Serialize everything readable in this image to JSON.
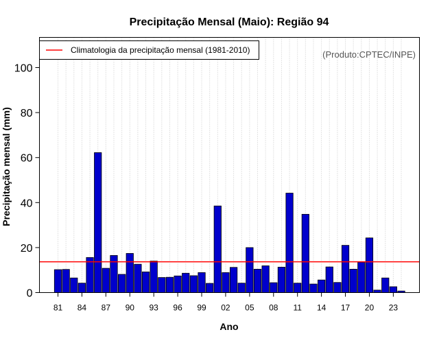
{
  "chart_data": {
    "type": "bar",
    "title": "Precipitação Mensal (Maio): Região 94",
    "xlabel": "Ano",
    "ylabel": "Precipitação mensal (mm)",
    "credit": "(Produto:CPTEC/INPE)",
    "legend": {
      "placement": "top-left",
      "entries": [
        {
          "label": "Climatologia da precipitação mensal (1981-2010)",
          "color": "#ff0000",
          "style": "line"
        }
      ]
    },
    "x_tick_labels": [
      "81",
      "84",
      "87",
      "90",
      "93",
      "96",
      "99",
      "02",
      "05",
      "08",
      "11",
      "14",
      "17",
      "20",
      "23"
    ],
    "y_ticks": [
      0,
      20,
      40,
      60,
      80,
      100
    ],
    "ylim": [
      0,
      110
    ],
    "grid": {
      "vertical_dotted": true
    },
    "bar_color": "#0000cc",
    "climatology": 13.7,
    "years": [
      1981,
      1982,
      1983,
      1984,
      1985,
      1986,
      1987,
      1988,
      1989,
      1990,
      1991,
      1992,
      1993,
      1994,
      1995,
      1996,
      1997,
      1998,
      1999,
      2000,
      2001,
      2002,
      2003,
      2004,
      2005,
      2006,
      2007,
      2008,
      2009,
      2010,
      2011,
      2012,
      2013,
      2014,
      2015,
      2016,
      2017,
      2018,
      2019,
      2020,
      2021,
      2022,
      2023,
      2024
    ],
    "values": [
      10.2,
      10.3,
      6.5,
      4.2,
      15.6,
      62.2,
      10.8,
      16.5,
      8.1,
      17.4,
      12.6,
      9.2,
      14.0,
      6.7,
      6.8,
      7.4,
      8.6,
      7.5,
      8.9,
      4.1,
      38.5,
      8.9,
      11.2,
      4.2,
      20.0,
      10.4,
      11.9,
      4.4,
      11.3,
      44.2,
      4.2,
      34.8,
      3.8,
      5.6,
      11.4,
      4.5,
      21.0,
      10.4,
      13.5,
      24.3,
      1.1,
      6.5,
      2.6,
      0.7
    ]
  }
}
